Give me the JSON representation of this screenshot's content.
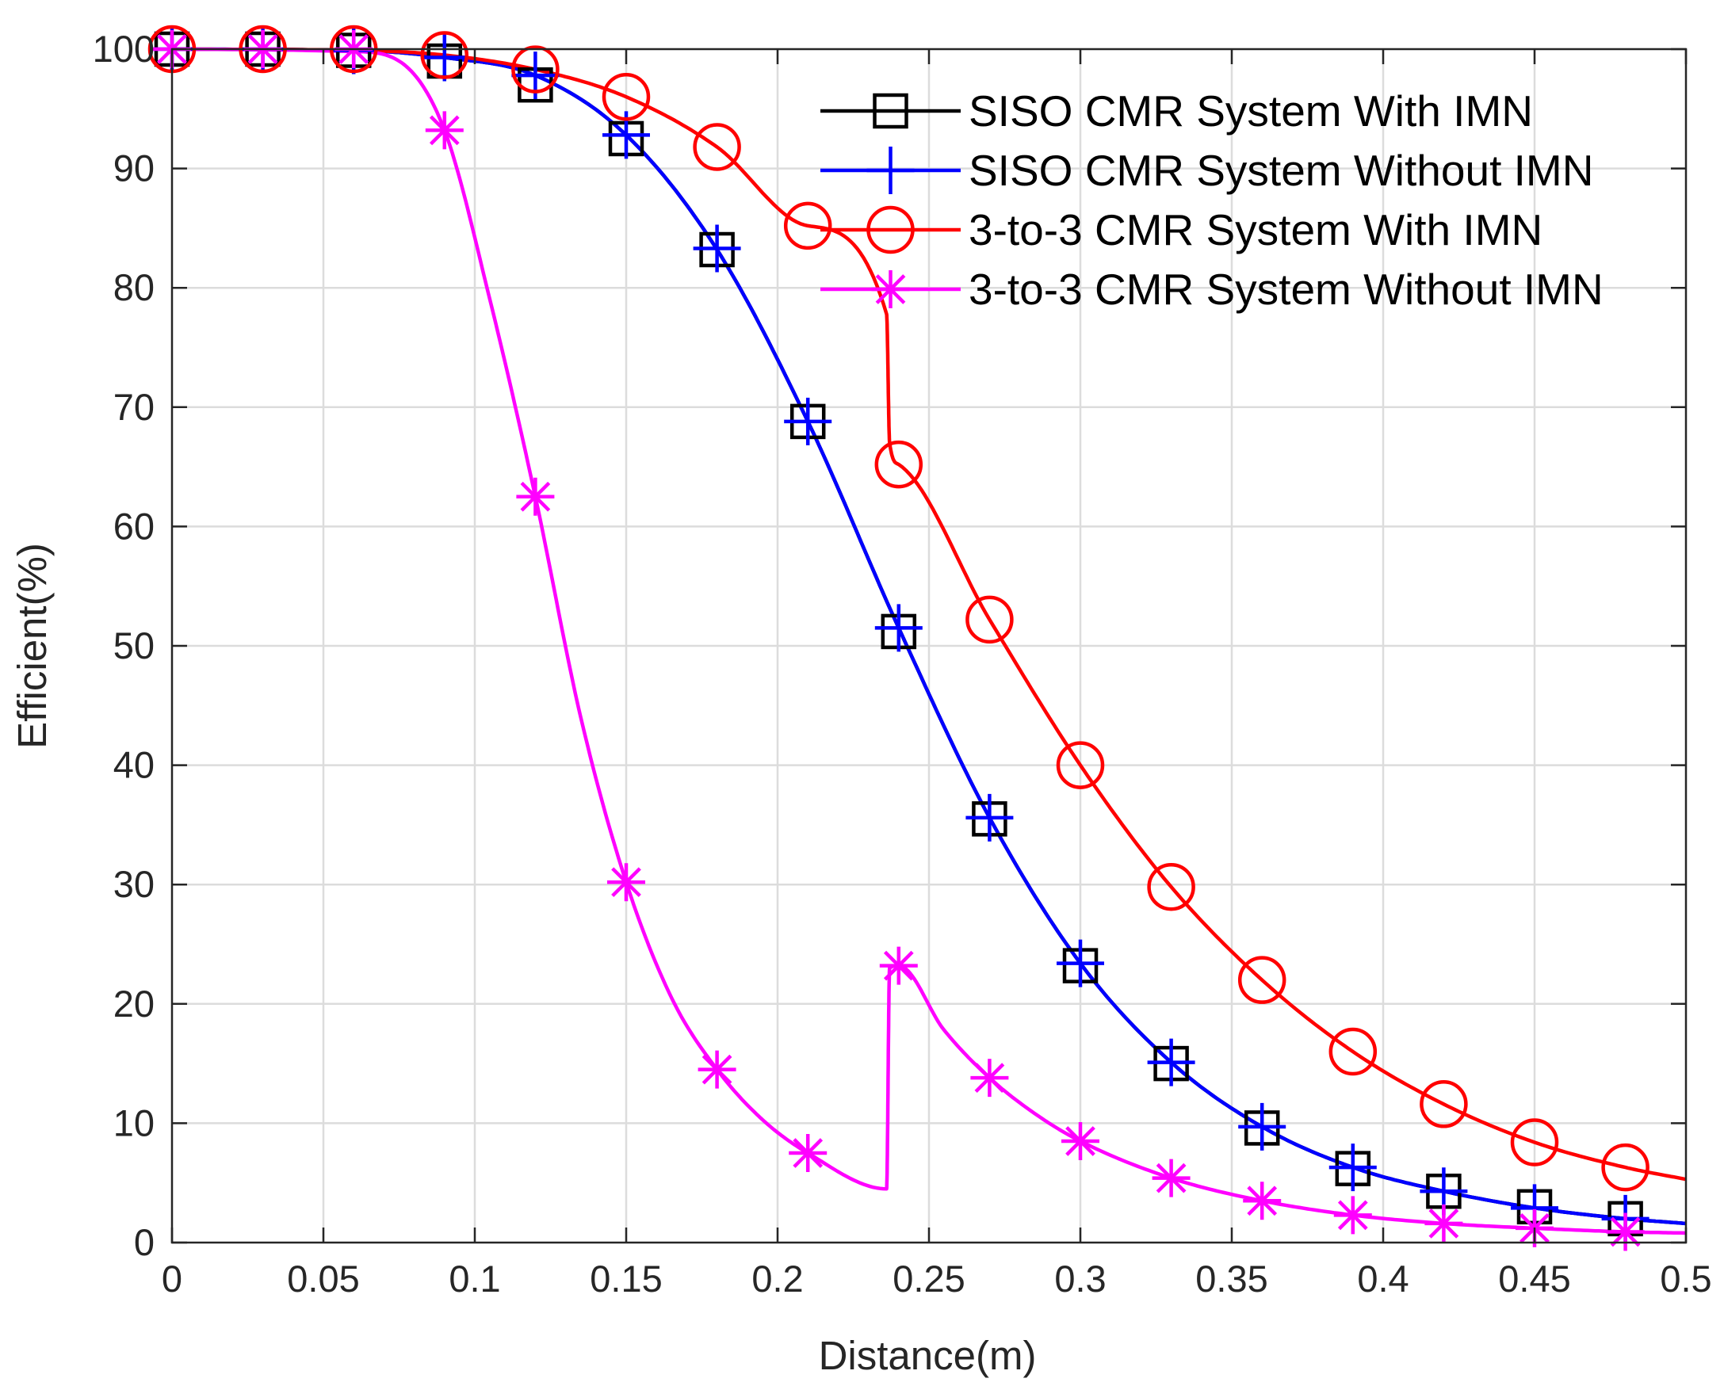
{
  "chart_data": {
    "type": "line",
    "title": "",
    "xlabel": "Distance(m)",
    "ylabel": "Efficient(%)",
    "xlim": [
      0,
      0.5
    ],
    "ylim": [
      0,
      100
    ],
    "grid": true,
    "legend_position": "top-right",
    "x_ticks": [
      0,
      0.05,
      0.1,
      0.15,
      0.2,
      0.25,
      0.3,
      0.35,
      0.4,
      0.45,
      0.5
    ],
    "x_tick_labels": [
      "0",
      "0.05",
      "0.1",
      "0.15",
      "0.2",
      "0.25",
      "0.3",
      "0.35",
      "0.4",
      "0.45",
      "0.5"
    ],
    "y_ticks": [
      0,
      10,
      20,
      30,
      40,
      50,
      60,
      70,
      80,
      90,
      100
    ],
    "y_tick_labels": [
      "0",
      "10",
      "20",
      "30",
      "40",
      "50",
      "60",
      "70",
      "80",
      "90",
      "100"
    ],
    "marker_x": [
      0,
      0.03,
      0.06,
      0.09,
      0.12,
      0.15,
      0.18,
      0.21,
      0.24,
      0.27,
      0.3,
      0.33,
      0.36,
      0.39,
      0.42,
      0.45,
      0.48
    ],
    "series": [
      {
        "name": "SISO CMR System With IMN",
        "color": "#000000",
        "marker": "square",
        "curve_x": [
          0,
          0.06,
          0.09,
          0.12,
          0.15,
          0.18,
          0.21,
          0.24,
          0.27,
          0.3,
          0.33,
          0.36,
          0.39,
          0.42,
          0.45,
          0.48,
          0.5
        ],
        "curve_y": [
          100,
          99.9,
          99.3,
          97.8,
          92.8,
          83.2,
          68.8,
          51.5,
          35.6,
          23.4,
          15.1,
          9.7,
          6.3,
          4.3,
          2.9,
          2,
          1.6
        ],
        "marker_y": [
          100,
          100,
          99.9,
          99,
          97,
          92.5,
          83.2,
          68.8,
          51.2,
          35.5,
          23.2,
          15,
          9.6,
          6.2,
          4.3,
          3,
          2
        ]
      },
      {
        "name": "SISO CMR System Without IMN",
        "color": "#0000ff",
        "marker": "plus",
        "curve_x": [
          0,
          0.06,
          0.09,
          0.12,
          0.15,
          0.18,
          0.21,
          0.24,
          0.27,
          0.3,
          0.33,
          0.36,
          0.39,
          0.42,
          0.45,
          0.48,
          0.5
        ],
        "curve_y": [
          100,
          99.9,
          99.3,
          97.8,
          92.8,
          83.2,
          68.8,
          51.5,
          35.6,
          23.4,
          15.1,
          9.7,
          6.3,
          4.3,
          2.9,
          2,
          1.6
        ],
        "marker_y": [
          100,
          100,
          99.9,
          99.3,
          97.8,
          92.8,
          83.3,
          68.8,
          51.5,
          35.6,
          23.4,
          15.1,
          9.7,
          6.3,
          4.3,
          2.9,
          2
        ]
      },
      {
        "name": "3-to-3 CMR System With IMN",
        "color": "#ff0000",
        "marker": "circle",
        "curve_x": [
          0,
          0.06,
          0.09,
          0.12,
          0.15,
          0.18,
          0.21,
          0.236,
          0.237,
          0.24,
          0.27,
          0.3,
          0.33,
          0.36,
          0.39,
          0.42,
          0.45,
          0.48,
          0.5
        ],
        "curve_y": [
          100,
          99.9,
          99.5,
          98.3,
          96,
          91.8,
          85.2,
          77.8,
          67,
          65.2,
          52.2,
          40,
          29.8,
          22,
          16,
          11.6,
          8.4,
          6.3,
          5.3
        ],
        "marker_y": [
          100,
          100,
          100,
          99.5,
          98.3,
          96,
          91.8,
          85.2,
          65.2,
          52.2,
          40,
          29.8,
          22,
          16,
          11.6,
          8.4,
          6.3
        ]
      },
      {
        "name": "3-to-3 CMR System Without IMN",
        "color": "#ff00ff",
        "marker": "asterisk",
        "curve_x": [
          0,
          0.06,
          0.075,
          0.09,
          0.105,
          0.12,
          0.135,
          0.15,
          0.165,
          0.18,
          0.195,
          0.21,
          0.236,
          0.237,
          0.24,
          0.255,
          0.27,
          0.285,
          0.3,
          0.33,
          0.36,
          0.39,
          0.42,
          0.45,
          0.48,
          0.5
        ],
        "curve_y": [
          100,
          99.8,
          99,
          93.2,
          79,
          62.5,
          44,
          30.2,
          20.5,
          14.5,
          10.3,
          7.5,
          4.5,
          23,
          23.2,
          17.8,
          13.8,
          10.8,
          8.5,
          5.4,
          3.5,
          2.3,
          1.6,
          1.2,
          0.9,
          0.8
        ],
        "marker_y": [
          100,
          100,
          100,
          93.2,
          62.5,
          30.2,
          14.5,
          7.5,
          23.2,
          13.8,
          8.5,
          5.4,
          3.5,
          2.3,
          1.6,
          1.2,
          0.9
        ]
      }
    ]
  }
}
